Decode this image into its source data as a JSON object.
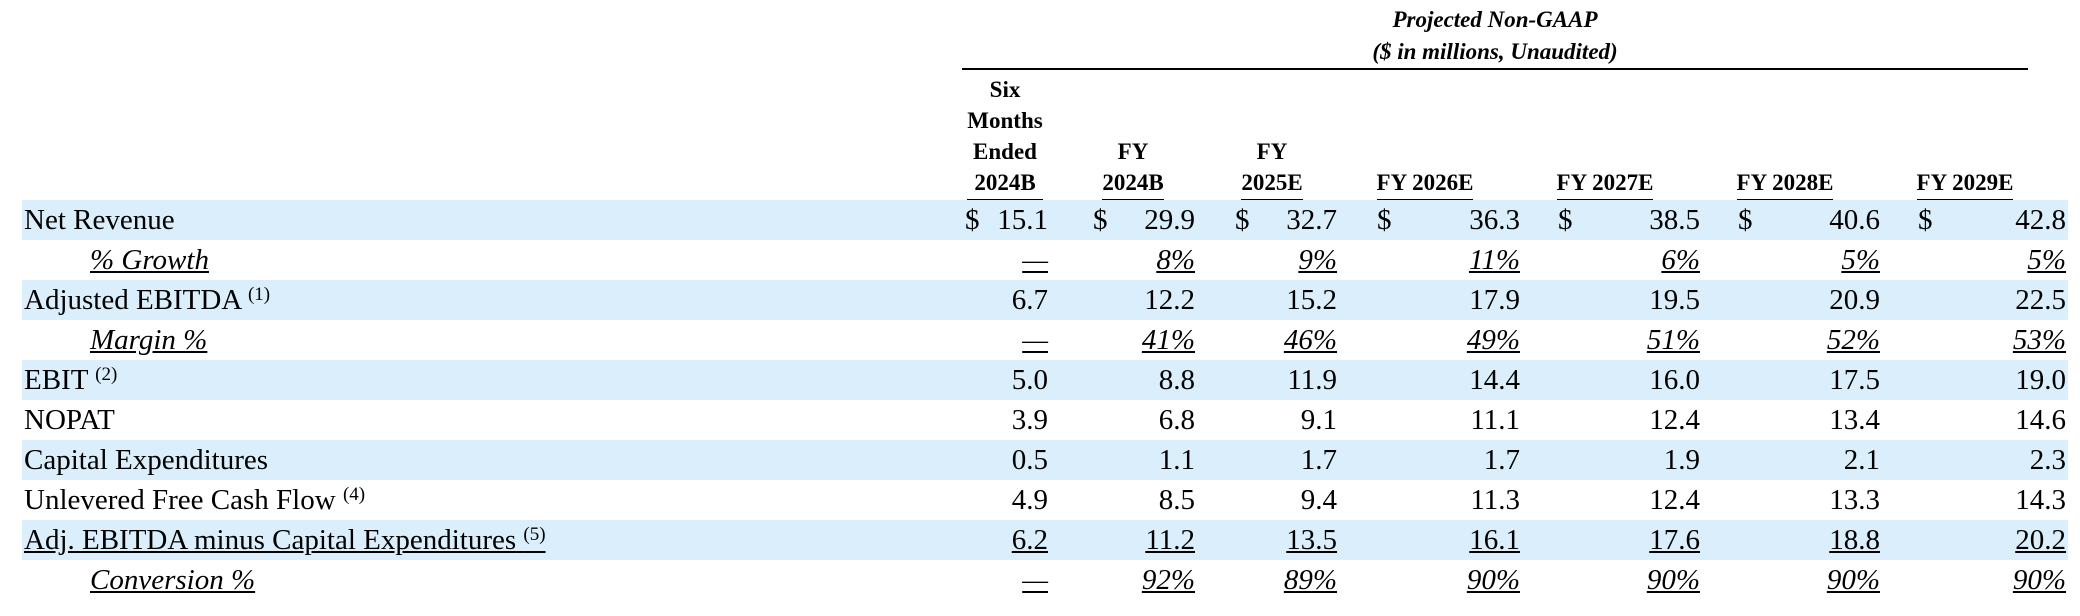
{
  "header": {
    "title": "Projected Non-GAAP",
    "subtitle": "($ in millions, Unaudited)"
  },
  "columns": [
    {
      "label": "Six Months Ended 2024B",
      "lines": [
        "Six",
        "Months",
        "Ended",
        "2024B"
      ]
    },
    {
      "label": "FY 2024B",
      "lines": [
        "FY",
        "2024B"
      ]
    },
    {
      "label": "FY 2025E",
      "lines": [
        "FY",
        "2025E"
      ]
    },
    {
      "label": "FY 2026E",
      "lines": [
        "FY 2026E"
      ]
    },
    {
      "label": "FY 2027E",
      "lines": [
        "FY 2027E"
      ]
    },
    {
      "label": "FY 2028E",
      "lines": [
        "FY 2028E"
      ]
    },
    {
      "label": "FY 2029E",
      "lines": [
        "FY 2029E"
      ]
    }
  ],
  "rows": [
    {
      "label": "Net Revenue",
      "note": "",
      "style": "main",
      "shaded": true,
      "dollar": true,
      "values": [
        "15.1",
        "29.9",
        "32.7",
        "36.3",
        "38.5",
        "40.6",
        "42.8"
      ]
    },
    {
      "label": "% Growth",
      "note": "",
      "style": "sub",
      "shaded": false,
      "values": [
        "—",
        "8%",
        "9%",
        "11%",
        "6%",
        "5%",
        "5%"
      ]
    },
    {
      "label": "Adjusted EBITDA",
      "note": "(1)",
      "style": "main",
      "shaded": true,
      "values": [
        "6.7",
        "12.2",
        "15.2",
        "17.9",
        "19.5",
        "20.9",
        "22.5"
      ]
    },
    {
      "label": "Margin %",
      "note": "",
      "style": "sub",
      "shaded": false,
      "values": [
        "—",
        "41%",
        "46%",
        "49%",
        "51%",
        "52%",
        "53%"
      ]
    },
    {
      "label": "EBIT",
      "note": "(2)",
      "style": "main",
      "shaded": true,
      "values": [
        "5.0",
        "8.8",
        "11.9",
        "14.4",
        "16.0",
        "17.5",
        "19.0"
      ]
    },
    {
      "label": "NOPAT",
      "note": "",
      "style": "main",
      "shaded": false,
      "values": [
        "3.9",
        "6.8",
        "9.1",
        "11.1",
        "12.4",
        "13.4",
        "14.6"
      ]
    },
    {
      "label": "Capital Expenditures",
      "note": "",
      "style": "main",
      "shaded": true,
      "values": [
        "0.5",
        "1.1",
        "1.7",
        "1.7",
        "1.9",
        "2.1",
        "2.3"
      ]
    },
    {
      "label": "Unlevered Free Cash Flow",
      "note": "(4)",
      "style": "main",
      "shaded": false,
      "values": [
        "4.9",
        "8.5",
        "9.4",
        "11.3",
        "12.4",
        "13.3",
        "14.3"
      ]
    },
    {
      "label": "Adj. EBITDA minus Capital Expenditures",
      "note": "(5)",
      "style": "total",
      "shaded": true,
      "values": [
        "6.2",
        "11.2",
        "13.5",
        "16.1",
        "17.6",
        "18.8",
        "20.2"
      ]
    },
    {
      "label": "Conversion %",
      "note": "",
      "style": "sub",
      "shaded": false,
      "values": [
        "—",
        "92%",
        "89%",
        "90%",
        "90%",
        "90%",
        "90%"
      ]
    }
  ],
  "currency_symbol": "$",
  "colors": {
    "shade": "#dbeefb",
    "text": "#000000"
  }
}
